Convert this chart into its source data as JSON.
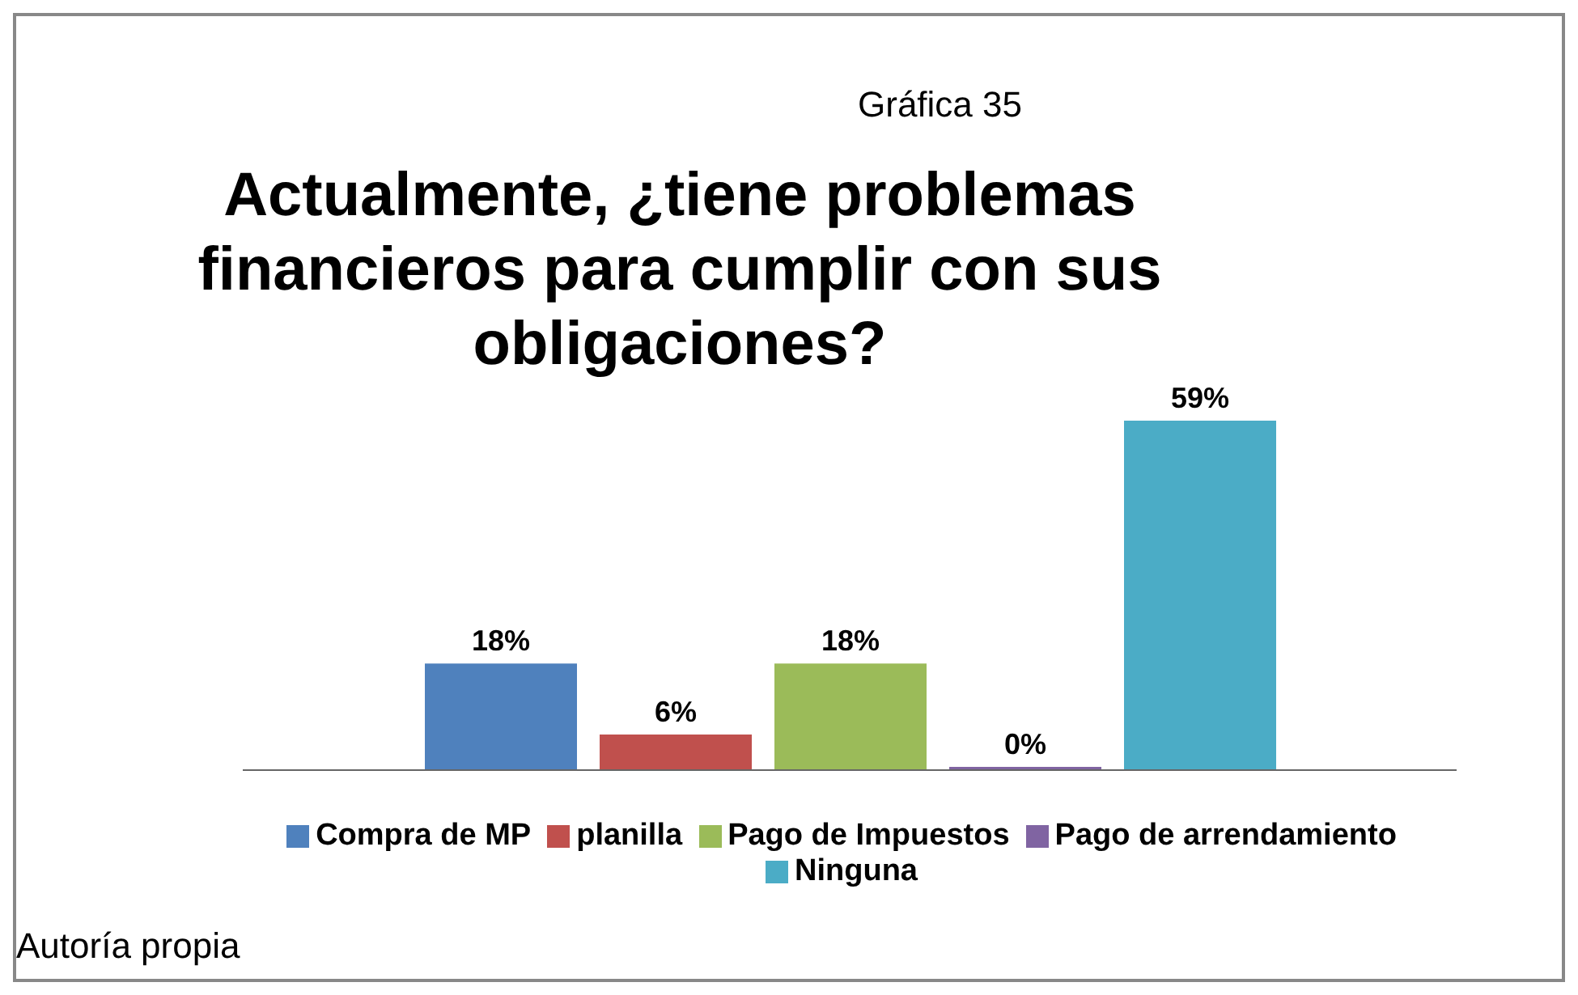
{
  "chart_data": {
    "type": "bar",
    "subtitle": "Gráfica 35",
    "title": "Actualmente, ¿tiene problemas financieros para cumplir con sus obligaciones?",
    "categories": [
      null
    ],
    "series": [
      {
        "name": "Compra de MP",
        "color": "#4f81bd",
        "values": [
          18
        ],
        "value_labels": [
          "18%"
        ]
      },
      {
        "name": "planilla",
        "color": "#c0504d",
        "values": [
          6
        ],
        "value_labels": [
          "6%"
        ]
      },
      {
        "name": "Pago de Impuestos",
        "color": "#9bbb59",
        "values": [
          18
        ],
        "value_labels": [
          "18%"
        ]
      },
      {
        "name": "Pago de arrendamiento",
        "color": "#8064a2",
        "values": [
          0
        ],
        "value_labels": [
          "0%"
        ]
      },
      {
        "name": "Ninguna",
        "color": "#4bacc6",
        "values": [
          59
        ],
        "value_labels": [
          "59%"
        ]
      }
    ],
    "legend": "bottom",
    "grid": false,
    "annotations": [
      "Autoría propia"
    ]
  }
}
